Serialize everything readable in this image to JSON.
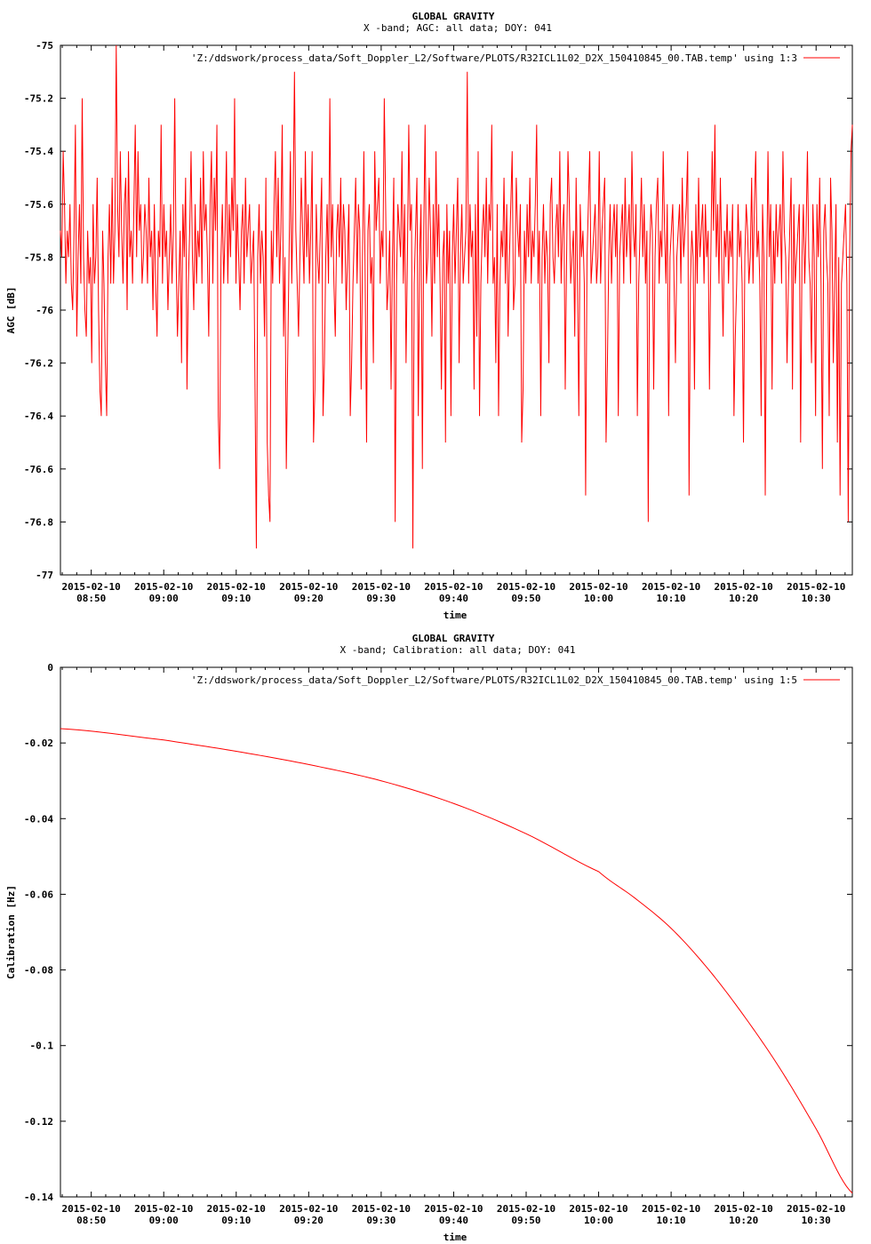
{
  "charts": [
    {
      "title_line1": "GLOBAL GRAVITY",
      "title_line2": "X -band; AGC: all data; DOY: 041",
      "xlabel": "time",
      "ylabel": "AGC [dB]",
      "legend": "'Z:/ddswork/process_data/Soft_Doppler_L2/Software/PLOTS/R32ICL1L02_D2X_150410845_00.TAB.temp' using 1:3",
      "ytick_labels": [
        "-75",
        "-75.2",
        "-75.4",
        "-75.6",
        "-75.8",
        "-76",
        "-76.2",
        "-76.4",
        "-76.6",
        "-76.8",
        "-77"
      ],
      "xtick_dates": [
        "2015-02-10",
        "2015-02-10",
        "2015-02-10",
        "2015-02-10",
        "2015-02-10",
        "2015-02-10",
        "2015-02-10",
        "2015-02-10",
        "2015-02-10",
        "2015-02-10",
        "2015-02-10"
      ],
      "xtick_times": [
        "08:50",
        "09:00",
        "09:10",
        "09:20",
        "09:30",
        "09:40",
        "09:50",
        "10:00",
        "10:10",
        "10:20",
        "10:30"
      ]
    },
    {
      "title_line1": "GLOBAL GRAVITY",
      "title_line2": "X -band; Calibration: all data; DOY: 041",
      "xlabel": "time",
      "ylabel": "Calibration [Hz]",
      "legend": "'Z:/ddswork/process_data/Soft_Doppler_L2/Software/PLOTS/R32ICL1L02_D2X_150410845_00.TAB.temp' using 1:5",
      "ytick_labels": [
        "0",
        "-0.02",
        "-0.04",
        "-0.06",
        "-0.08",
        "-0.1",
        "-0.12",
        "-0.14"
      ],
      "xtick_dates": [
        "2015-02-10",
        "2015-02-10",
        "2015-02-10",
        "2015-02-10",
        "2015-02-10",
        "2015-02-10",
        "2015-02-10",
        "2015-02-10",
        "2015-02-10",
        "2015-02-10",
        "2015-02-10"
      ],
      "xtick_times": [
        "08:50",
        "09:00",
        "09:10",
        "09:20",
        "09:30",
        "09:40",
        "09:50",
        "10:00",
        "10:10",
        "10:20",
        "10:30"
      ]
    }
  ],
  "chart_data": [
    {
      "type": "line",
      "title": "GLOBAL GRAVITY / X -band; AGC: all data; DOY: 041",
      "xlabel": "time",
      "ylabel": "AGC [dB]",
      "x_range": [
        "2015-02-10 08:45:45",
        "2015-02-10 10:35:00"
      ],
      "x_ticks": [
        "2015-02-10 08:50",
        "2015-02-10 09:00",
        "2015-02-10 09:10",
        "2015-02-10 09:20",
        "2015-02-10 09:30",
        "2015-02-10 09:40",
        "2015-02-10 09:50",
        "2015-02-10 10:00",
        "2015-02-10 10:10",
        "2015-02-10 10:20",
        "2015-02-10 10:30"
      ],
      "ylim": [
        -77,
        -75
      ],
      "y_ticks": [
        -75,
        -75.2,
        -75.4,
        -75.6,
        -75.8,
        -76,
        -76.2,
        -76.4,
        -76.6,
        -76.8,
        -77
      ],
      "grid": false,
      "legend_position": "top-right",
      "series": [
        {
          "name": "'Z:/ddswork/process_data/Soft_Doppler_L2/Software/PLOTS/R32ICL1L02_D2X_150410845_00.TAB.temp' using 1:3",
          "color": "#ff0000",
          "x_start": "2015-02-10 08:45:45",
          "x_end": "2015-02-10 10:35:00",
          "y": [
            -75.7,
            -75.8,
            -75.4,
            -75.6,
            -75.9,
            -75.7,
            -75.8,
            -75.6,
            -75.9,
            -76.0,
            -75.7,
            -75.3,
            -76.1,
            -75.8,
            -75.6,
            -75.9,
            -75.2,
            -75.8,
            -76.0,
            -76.1,
            -75.7,
            -75.9,
            -75.8,
            -76.2,
            -75.6,
            -75.9,
            -75.8,
            -75.5,
            -76.0,
            -76.3,
            -76.4,
            -75.7,
            -75.9,
            -76.2,
            -76.4,
            -75.8,
            -75.6,
            -75.9,
            -75.5,
            -75.9,
            -75.7,
            -75.0,
            -75.6,
            -75.8,
            -75.4,
            -75.7,
            -75.9,
            -75.6,
            -75.5,
            -76.0,
            -75.4,
            -75.8,
            -75.7,
            -75.9,
            -75.6,
            -75.3,
            -75.8,
            -75.4,
            -75.7,
            -75.6,
            -75.9,
            -75.8,
            -75.6,
            -75.7,
            -75.9,
            -75.5,
            -75.8,
            -75.7,
            -76.0,
            -75.6,
            -75.9,
            -76.1,
            -75.7,
            -75.8,
            -75.3,
            -75.9,
            -75.6,
            -75.8,
            -75.7,
            -76.0,
            -75.8,
            -75.6,
            -75.9,
            -75.7,
            -75.2,
            -75.8,
            -76.1,
            -75.9,
            -75.7,
            -76.2,
            -75.6,
            -75.8,
            -75.5,
            -76.3,
            -75.9,
            -75.7,
            -75.4,
            -75.8,
            -76.0,
            -75.6,
            -75.9,
            -75.7,
            -75.8,
            -75.5,
            -75.9,
            -75.4,
            -75.7,
            -75.6,
            -75.8,
            -76.1,
            -75.6,
            -75.4,
            -75.9,
            -75.5,
            -75.7,
            -75.3,
            -76.4,
            -76.6,
            -75.8,
            -75.6,
            -75.9,
            -75.7,
            -75.4,
            -75.9,
            -75.6,
            -75.8,
            -75.5,
            -75.7,
            -75.2,
            -75.9,
            -75.6,
            -75.8,
            -76.0,
            -75.7,
            -75.6,
            -75.9,
            -75.5,
            -75.8,
            -75.7,
            -75.6,
            -75.9,
            -75.8,
            -75.7,
            -76.3,
            -76.9,
            -75.8,
            -75.6,
            -75.9,
            -75.7,
            -75.8,
            -76.1,
            -75.5,
            -76.5,
            -76.7,
            -76.8,
            -75.7,
            -75.9,
            -75.6,
            -75.4,
            -75.8,
            -75.5,
            -75.9,
            -75.7,
            -75.3,
            -76.1,
            -75.8,
            -76.6,
            -76.2,
            -75.8,
            -75.4,
            -75.9,
            -75.6,
            -75.1,
            -75.7,
            -75.9,
            -76.1,
            -75.8,
            -75.5,
            -75.7,
            -75.9,
            -75.4,
            -75.8,
            -75.6,
            -75.9,
            -75.7,
            -75.4,
            -76.5,
            -76.3,
            -75.6,
            -75.8,
            -75.9,
            -75.7,
            -75.5,
            -76.4,
            -76.2,
            -75.8,
            -75.6,
            -75.9,
            -75.2,
            -75.8,
            -75.6,
            -75.9,
            -76.1,
            -75.7,
            -75.6,
            -75.8,
            -75.5,
            -75.9,
            -75.6,
            -75.7,
            -76.0,
            -75.8,
            -75.6,
            -76.4,
            -76.2,
            -75.9,
            -75.7,
            -75.5,
            -75.9,
            -75.6,
            -75.7,
            -76.3,
            -75.8,
            -75.4,
            -75.9,
            -76.5,
            -75.7,
            -75.6,
            -75.9,
            -75.8,
            -76.2,
            -75.4,
            -75.7,
            -75.6,
            -75.5,
            -75.9,
            -75.7,
            -75.8,
            -75.2,
            -75.6,
            -76.0,
            -75.9,
            -75.7,
            -76.3,
            -75.8,
            -75.5,
            -76.8,
            -75.9,
            -75.6,
            -75.7,
            -75.8,
            -75.4,
            -75.9,
            -75.6,
            -76.2,
            -75.8,
            -75.3,
            -75.7,
            -75.6,
            -76.9,
            -75.9,
            -75.7,
            -75.5,
            -76.4,
            -75.8,
            -75.6,
            -76.6,
            -75.7,
            -75.3,
            -75.9,
            -75.8,
            -75.5,
            -75.7,
            -76.1,
            -75.6,
            -75.9,
            -75.4,
            -75.8,
            -75.6,
            -75.9,
            -76.3,
            -75.8,
            -75.7,
            -76.5,
            -75.6,
            -75.9,
            -75.7,
            -76.4,
            -75.8,
            -75.6,
            -75.9,
            -75.7,
            -75.5,
            -76.2,
            -75.8,
            -75.6,
            -75.9,
            -75.8,
            -75.7,
            -75.1,
            -75.9,
            -75.6,
            -75.8,
            -75.7,
            -76.3,
            -75.6,
            -76.1,
            -75.4,
            -76.4,
            -75.9,
            -75.7,
            -75.6,
            -75.8,
            -75.5,
            -75.9,
            -75.6,
            -75.7,
            -75.3,
            -75.9,
            -75.8,
            -76.2,
            -75.6,
            -76.4,
            -75.9,
            -75.7,
            -75.8,
            -75.5,
            -75.9,
            -75.6,
            -76.1,
            -75.8,
            -75.6,
            -75.4,
            -76.0,
            -75.9,
            -75.5,
            -75.7,
            -75.8,
            -75.6,
            -76.5,
            -76.3,
            -75.7,
            -75.9,
            -75.6,
            -75.8,
            -75.5,
            -75.9,
            -75.7,
            -75.8,
            -75.6,
            -75.3,
            -75.9,
            -75.7,
            -76.4,
            -75.8,
            -75.6,
            -75.9,
            -75.7,
            -75.8,
            -76.2,
            -75.6,
            -75.5,
            -75.8,
            -75.9,
            -75.7,
            -75.6,
            -75.8,
            -75.4,
            -75.9,
            -75.7,
            -75.6,
            -76.3,
            -75.8,
            -75.4,
            -75.6,
            -75.9,
            -75.8,
            -75.7,
            -76.1,
            -75.5,
            -75.9,
            -76.4,
            -75.6,
            -75.8,
            -75.7,
            -75.9,
            -76.7,
            -75.8,
            -75.6,
            -75.4,
            -75.9,
            -75.8,
            -75.7,
            -75.6,
            -75.9,
            -75.8,
            -75.4,
            -75.9,
            -75.7,
            -75.6,
            -75.5,
            -76.5,
            -76.2,
            -75.8,
            -75.6,
            -75.9,
            -75.7,
            -75.6,
            -75.8,
            -75.6,
            -76.4,
            -75.8,
            -75.7,
            -75.6,
            -75.9,
            -75.5,
            -75.8,
            -75.7,
            -75.6,
            -75.9,
            -75.4,
            -75.7,
            -75.8,
            -75.6,
            -76.4,
            -75.9,
            -75.7,
            -75.5,
            -75.8,
            -75.6,
            -75.9,
            -75.7,
            -76.8,
            -75.8,
            -75.6,
            -75.7,
            -76.3,
            -75.8,
            -75.6,
            -75.5,
            -75.9,
            -75.7,
            -75.8,
            -75.4,
            -75.7,
            -75.9,
            -75.6,
            -76.4,
            -75.8,
            -75.7,
            -75.6,
            -75.9,
            -76.2,
            -75.8,
            -75.7,
            -75.6,
            -75.9,
            -75.5,
            -75.8,
            -75.7,
            -75.6,
            -75.4,
            -76.7,
            -75.9,
            -75.7,
            -75.8,
            -76.3,
            -75.6,
            -75.9,
            -75.5,
            -75.8,
            -75.7,
            -75.6,
            -75.9,
            -75.6,
            -75.8,
            -75.7,
            -76.3,
            -75.8,
            -75.4,
            -75.7,
            -75.3,
            -75.8,
            -75.6,
            -75.9,
            -75.5,
            -75.8,
            -76.1,
            -75.7,
            -75.8,
            -75.6,
            -75.9,
            -75.7,
            -75.8,
            -75.6,
            -76.4,
            -76.1,
            -75.9,
            -75.6,
            -75.8,
            -75.7,
            -75.9,
            -76.5,
            -75.8,
            -75.6,
            -75.7,
            -75.9,
            -75.8,
            -75.5,
            -75.9,
            -75.6,
            -75.4,
            -75.8,
            -75.7,
            -75.9,
            -76.4,
            -75.6,
            -75.8,
            -76.7,
            -75.9,
            -75.4,
            -75.8,
            -75.6,
            -76.3,
            -75.7,
            -75.9,
            -75.6,
            -75.8,
            -75.7,
            -75.6,
            -75.9,
            -75.4,
            -75.7,
            -75.8,
            -76.2,
            -75.9,
            -75.7,
            -75.5,
            -76.3,
            -75.6,
            -75.9,
            -75.8,
            -75.7,
            -75.6,
            -76.5,
            -75.8,
            -75.6,
            -75.9,
            -75.7,
            -75.4,
            -75.8,
            -75.9,
            -76.2,
            -75.6,
            -75.8,
            -76.4,
            -75.6,
            -75.8,
            -75.5,
            -75.9,
            -76.6,
            -75.7,
            -75.6,
            -75.8,
            -75.9,
            -76.4,
            -75.5,
            -75.7,
            -76.2,
            -75.9,
            -75.6,
            -76.5,
            -75.8,
            -76.7,
            -75.9,
            -75.8,
            -75.7,
            -75.6,
            -75.9,
            -76.8,
            -75.8,
            -75.4,
            -75.3
          ]
        }
      ]
    },
    {
      "type": "line",
      "title": "GLOBAL GRAVITY / X -band; Calibration: all data; DOY: 041",
      "xlabel": "time",
      "ylabel": "Calibration [Hz]",
      "x_range": [
        "2015-02-10 08:45:45",
        "2015-02-10 10:35:00"
      ],
      "x_ticks": [
        "2015-02-10 08:50",
        "2015-02-10 09:00",
        "2015-02-10 09:10",
        "2015-02-10 09:20",
        "2015-02-10 09:30",
        "2015-02-10 09:40",
        "2015-02-10 09:50",
        "2015-02-10 10:00",
        "2015-02-10 10:10",
        "2015-02-10 10:20",
        "2015-02-10 10:30"
      ],
      "ylim": [
        -0.14,
        0
      ],
      "y_ticks": [
        0,
        -0.02,
        -0.04,
        -0.06,
        -0.08,
        -0.1,
        -0.12,
        -0.14
      ],
      "grid": false,
      "legend_position": "top-right",
      "series": [
        {
          "name": "'Z:/ddswork/process_data/Soft_Doppler_L2/Software/PLOTS/R32ICL1L02_D2X_150410845_00.TAB.temp' using 1:5",
          "color": "#ff0000",
          "x": [
            "2015-02-10 08:45:45",
            "2015-02-10 09:00",
            "2015-02-10 09:10",
            "2015-02-10 09:20",
            "2015-02-10 09:30",
            "2015-02-10 09:40",
            "2015-02-10 09:50",
            "2015-02-10 10:00",
            "2015-02-10 10:05",
            "2015-02-10 10:10",
            "2015-02-10 10:15",
            "2015-02-10 10:20",
            "2015-02-10 10:25",
            "2015-02-10 10:30",
            "2015-02-10 10:35:00"
          ],
          "y": [
            -0.0162,
            -0.0192,
            -0.0222,
            -0.0257,
            -0.03,
            -0.036,
            -0.044,
            -0.054,
            -0.061,
            -0.069,
            -0.0795,
            -0.092,
            -0.106,
            -0.122,
            -0.139
          ]
        }
      ]
    }
  ]
}
